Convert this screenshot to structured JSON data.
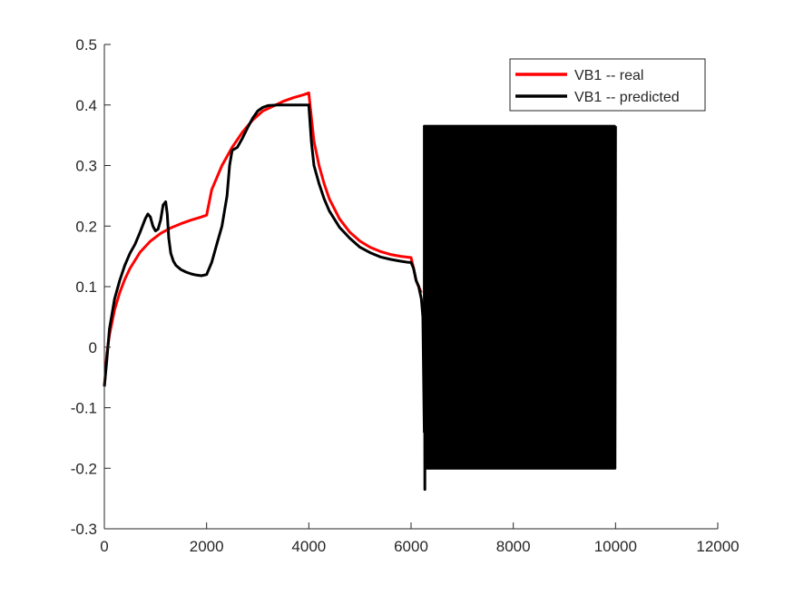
{
  "chart_data": {
    "type": "line",
    "title": "",
    "xlabel": "",
    "ylabel": "",
    "xlim": [
      0,
      12000
    ],
    "ylim": [
      -0.3,
      0.5
    ],
    "xticks": [
      0,
      2000,
      4000,
      6000,
      8000,
      10000,
      12000
    ],
    "yticks": [
      -0.3,
      -0.2,
      -0.1,
      0,
      0.1,
      0.2,
      0.3,
      0.4,
      0.5
    ],
    "xtick_labels": [
      "0",
      "2000",
      "4000",
      "6000",
      "8000",
      "10000",
      "12000"
    ],
    "ytick_labels": [
      "-0.3",
      "-0.2",
      "-0.1",
      "0",
      "0.1",
      "0.2",
      "0.3",
      "0.4",
      "0.5"
    ],
    "grid": false,
    "legend_position": "top-right",
    "series": [
      {
        "name": "VB1 -- real",
        "color": "#ff0000",
        "x": [
          0,
          50,
          100,
          200,
          300,
          400,
          500,
          700,
          900,
          1100,
          1300,
          1500,
          1700,
          1900,
          2000,
          2100,
          2300,
          2500,
          2700,
          2900,
          3100,
          3300,
          3500,
          3700,
          3900,
          4000,
          4050,
          4100,
          4200,
          4300,
          4400,
          4600,
          4800,
          5000,
          5200,
          5400,
          5600,
          5800,
          6000,
          6050,
          6100,
          6200
        ],
        "y": [
          -0.065,
          -0.01,
          0.02,
          0.062,
          0.09,
          0.112,
          0.13,
          0.157,
          0.175,
          0.188,
          0.197,
          0.204,
          0.21,
          0.215,
          0.218,
          0.26,
          0.3,
          0.33,
          0.355,
          0.375,
          0.39,
          0.398,
          0.406,
          0.412,
          0.417,
          0.42,
          0.38,
          0.34,
          0.3,
          0.27,
          0.245,
          0.212,
          0.19,
          0.175,
          0.165,
          0.158,
          0.153,
          0.15,
          0.148,
          0.13,
          0.11,
          0.09
        ]
      },
      {
        "name": "VB1 -- predicted",
        "color": "#000000",
        "x": [
          0,
          50,
          100,
          200,
          300,
          400,
          500,
          600,
          700,
          800,
          850,
          900,
          950,
          1000,
          1050,
          1100,
          1150,
          1200,
          1230,
          1260,
          1300,
          1350,
          1400,
          1500,
          1600,
          1700,
          1800,
          1900,
          2000,
          2100,
          2200,
          2300,
          2400,
          2450,
          2500,
          2600,
          2700,
          2800,
          2900,
          3000,
          3100,
          3200,
          3400,
          3600,
          3800,
          4000,
          4050,
          4100,
          4200,
          4300,
          4400,
          4600,
          4800,
          5000,
          5200,
          5400,
          5600,
          5800,
          5950,
          6000,
          6050,
          6100,
          6150,
          6200,
          6230,
          6260
        ],
        "y": [
          -0.065,
          -0.02,
          0.03,
          0.08,
          0.11,
          0.135,
          0.155,
          0.17,
          0.19,
          0.212,
          0.22,
          0.215,
          0.2,
          0.192,
          0.195,
          0.21,
          0.235,
          0.24,
          0.22,
          0.18,
          0.155,
          0.142,
          0.135,
          0.128,
          0.124,
          0.121,
          0.119,
          0.118,
          0.12,
          0.14,
          0.17,
          0.2,
          0.25,
          0.3,
          0.325,
          0.33,
          0.345,
          0.362,
          0.378,
          0.39,
          0.396,
          0.399,
          0.4,
          0.4,
          0.4,
          0.4,
          0.34,
          0.3,
          0.27,
          0.245,
          0.225,
          0.198,
          0.18,
          0.165,
          0.156,
          0.149,
          0.145,
          0.142,
          0.14,
          0.14,
          0.13,
          0.11,
          0.1,
          0.08,
          0.05,
          -0.14
        ]
      }
    ],
    "oscillation": {
      "series": "VB1 -- predicted",
      "x_start": 6260,
      "x_end": 10000,
      "y_high": 0.365,
      "y_low": -0.2,
      "y_min": -0.235
    }
  },
  "legend": {
    "items": [
      {
        "label": "VB1 -- real",
        "color": "#ff0000"
      },
      {
        "label": "VB1 -- predicted",
        "color": "#000000"
      }
    ]
  }
}
